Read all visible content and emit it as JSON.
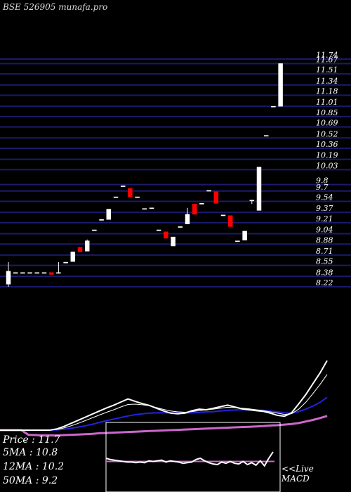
{
  "watermark": "BSE 526905 munafa.pro",
  "chart_data": {
    "type": "candlestick",
    "y_ticks": [
      "11.74",
      "11.67",
      "11.51",
      "11.34",
      "11.18",
      "11.01",
      "10.85",
      "10.69",
      "10.52",
      "10.36",
      "10.19",
      "10.03",
      "9.8",
      "9.7",
      "9.54",
      "9.37",
      "9.21",
      "9.04",
      "8.88",
      "8.71",
      "8.55",
      "8.38",
      "8.22"
    ],
    "candles": [
      {
        "o": 8.26,
        "c": 8.46,
        "h": 8.6,
        "l": 8.22,
        "color": "white"
      },
      {
        "o": 8.44,
        "c": 8.44,
        "h": 8.44,
        "l": 8.44,
        "color": "white"
      },
      {
        "o": 8.44,
        "c": 8.44,
        "h": 8.44,
        "l": 8.44,
        "color": "white"
      },
      {
        "o": 8.44,
        "c": 8.44,
        "h": 8.44,
        "l": 8.44,
        "color": "white"
      },
      {
        "o": 8.44,
        "c": 8.44,
        "h": 8.44,
        "l": 8.44,
        "color": "white"
      },
      {
        "o": 8.44,
        "c": 8.44,
        "h": 8.44,
        "l": 8.44,
        "color": "white"
      },
      {
        "o": 8.44,
        "c": 8.41,
        "h": 8.44,
        "l": 8.41,
        "color": "red"
      },
      {
        "o": 8.44,
        "c": 8.44,
        "h": 8.6,
        "l": 8.44,
        "color": "white"
      },
      {
        "o": 8.6,
        "c": 8.6,
        "h": 8.6,
        "l": 8.6,
        "color": "white"
      },
      {
        "o": 8.61,
        "c": 8.76,
        "h": 8.76,
        "l": 8.61,
        "color": "white"
      },
      {
        "o": 8.76,
        "c": 8.83,
        "h": 8.83,
        "l": 8.76,
        "color": "red"
      },
      {
        "o": 8.77,
        "c": 8.93,
        "h": 8.95,
        "l": 8.77,
        "color": "white"
      },
      {
        "o": 9.1,
        "c": 9.1,
        "h": 9.1,
        "l": 9.1,
        "color": "white"
      },
      {
        "o": 9.26,
        "c": 9.26,
        "h": 9.26,
        "l": 9.26,
        "color": "white"
      },
      {
        "o": 9.26,
        "c": 9.42,
        "h": 9.42,
        "l": 9.26,
        "color": "white"
      },
      {
        "o": 9.61,
        "c": 9.61,
        "h": 9.61,
        "l": 9.61,
        "color": "white"
      },
      {
        "o": 9.78,
        "c": 9.78,
        "h": 9.78,
        "l": 9.78,
        "color": "white"
      },
      {
        "o": 9.74,
        "c": 9.61,
        "h": 9.74,
        "l": 9.61,
        "color": "red"
      },
      {
        "o": 9.61,
        "c": 9.61,
        "h": 9.61,
        "l": 9.61,
        "color": "white"
      },
      {
        "o": 9.43,
        "c": 9.43,
        "h": 9.43,
        "l": 9.43,
        "color": "white"
      },
      {
        "o": 9.44,
        "c": 9.44,
        "h": 9.44,
        "l": 9.44,
        "color": "white"
      },
      {
        "o": 9.1,
        "c": 9.1,
        "h": 9.1,
        "l": 9.1,
        "color": "white"
      },
      {
        "o": 9.07,
        "c": 8.97,
        "h": 9.07,
        "l": 8.97,
        "color": "red"
      },
      {
        "o": 8.85,
        "c": 8.99,
        "h": 8.99,
        "l": 8.85,
        "color": "white"
      },
      {
        "o": 9.15,
        "c": 9.15,
        "h": 9.15,
        "l": 9.15,
        "color": "white"
      },
      {
        "o": 9.19,
        "c": 9.34,
        "h": 9.44,
        "l": 9.19,
        "color": "white"
      },
      {
        "o": 9.5,
        "c": 9.34,
        "h": 9.5,
        "l": 9.34,
        "color": "red"
      },
      {
        "o": 9.51,
        "c": 9.51,
        "h": 9.51,
        "l": 9.51,
        "color": "white"
      },
      {
        "o": 9.71,
        "c": 9.71,
        "h": 9.71,
        "l": 9.71,
        "color": "white"
      },
      {
        "o": 9.69,
        "c": 9.51,
        "h": 9.69,
        "l": 9.51,
        "color": "red"
      },
      {
        "o": 9.33,
        "c": 9.33,
        "h": 9.33,
        "l": 9.33,
        "color": "white"
      },
      {
        "o": 9.32,
        "c": 9.15,
        "h": 9.32,
        "l": 9.15,
        "color": "red"
      },
      {
        "o": 8.93,
        "c": 8.93,
        "h": 8.93,
        "l": 8.93,
        "color": "white"
      },
      {
        "o": 8.94,
        "c": 9.08,
        "h": 9.08,
        "l": 8.94,
        "color": "white"
      },
      {
        "o": 9.56,
        "c": 9.56,
        "h": 9.56,
        "l": 9.5,
        "color": "white"
      },
      {
        "o": 9.4,
        "c": 10.07,
        "h": 10.07,
        "l": 9.4,
        "color": "white"
      },
      {
        "o": 10.56,
        "c": 10.56,
        "h": 10.56,
        "l": 10.56,
        "color": "white"
      },
      {
        "o": 11.01,
        "c": 11.01,
        "h": 11.01,
        "l": 11.01,
        "color": "white"
      },
      {
        "o": 11.01,
        "c": 11.67,
        "h": 11.67,
        "l": 11.01,
        "color": "white"
      }
    ],
    "lower_panel": {
      "price_line": [
        0,
        0,
        0,
        0,
        0,
        0,
        0,
        0,
        0.4,
        1.2,
        2.2,
        3.2,
        4.2,
        5.2,
        6.2,
        7.2,
        8.1,
        9.1,
        10.1,
        9.3,
        8.6,
        8.0,
        7.1,
        6.2,
        5.5,
        5.3,
        5.5,
        6.3,
        6.8,
        6.6,
        7.1,
        7.6,
        8.1,
        7.5,
        6.9,
        6.6,
        6.3,
        6.1,
        5.5,
        4.8,
        4.5,
        5.6,
        8.5,
        11.5,
        15.0,
        18.5,
        22.5
      ],
      "ma5": [
        0,
        0,
        0,
        0,
        0,
        0,
        0,
        0,
        0.2,
        0.7,
        1.4,
        2.2,
        3.1,
        4.0,
        4.9,
        5.8,
        6.6,
        7.5,
        8.3,
        8.4,
        8.2,
        7.9,
        7.3,
        6.7,
        6.2,
        5.9,
        5.8,
        6.0,
        6.3,
        6.6,
        6.8,
        7.1,
        7.4,
        7.3,
        7.1,
        6.9,
        6.6,
        6.3,
        5.9,
        5.5,
        5.1,
        5.3,
        6.8,
        9.0,
        11.8,
        14.8,
        18.0
      ],
      "ma12": [
        0,
        0,
        0,
        0,
        0,
        0,
        0,
        0,
        0.1,
        0.3,
        0.6,
        1.0,
        1.4,
        1.9,
        2.5,
        3.1,
        3.6,
        4.1,
        4.6,
        5.0,
        5.3,
        5.5,
        5.6,
        5.6,
        5.6,
        5.5,
        5.5,
        5.6,
        5.7,
        5.9,
        6.0,
        6.2,
        6.4,
        6.5,
        6.6,
        6.6,
        6.5,
        6.4,
        6.2,
        5.9,
        5.6,
        5.5,
        6.0,
        6.8,
        7.8,
        9.0,
        10.6
      ],
      "ma50": [
        0,
        0,
        0,
        0,
        -1.5,
        -1.6,
        -1.7,
        -1.7,
        -1.7,
        -1.6,
        -1.5,
        -1.4,
        -1.3,
        -1.2,
        -1.0,
        -0.9,
        -0.8,
        -0.7,
        -0.6,
        -0.5,
        -0.4,
        -0.3,
        -0.2,
        -0.1,
        0,
        0.1,
        0.2,
        0.3,
        0.4,
        0.5,
        0.6,
        0.7,
        0.8,
        0.9,
        1.0,
        1.1,
        1.2,
        1.3,
        1.5,
        1.6,
        1.8,
        2.0,
        2.3,
        2.8,
        3.3,
        3.9,
        4.6
      ]
    },
    "macd_panel": {
      "line": [
        0.0,
        -0.02,
        -0.03,
        -0.04,
        -0.05,
        -0.06,
        -0.06,
        -0.07,
        -0.06,
        -0.07,
        -0.04,
        -0.05,
        -0.04,
        -0.03,
        -0.06,
        -0.04,
        -0.05,
        -0.06,
        -0.08,
        -0.07,
        -0.06,
        -0.02,
        0.0,
        -0.04,
        -0.07,
        -0.09,
        -0.1,
        -0.06,
        -0.08,
        -0.05,
        -0.08,
        -0.09,
        -0.05,
        -0.1,
        -0.07,
        -0.11,
        -0.04,
        -0.12,
        0.0,
        0.1
      ],
      "signal": -0.05
    }
  },
  "legend": {
    "price": "Price   : 11.7",
    "ma5": "5MA : 10.8",
    "ma12": "12MA : 10.2",
    "ma50": "50MA : 9.2"
  },
  "macd_label_live": "<<Live",
  "macd_label_name": "MACD",
  "colors": {
    "grid": "#1a1a6e",
    "up": "#ffffff",
    "down": "#ff0000",
    "price_line": "#ffffff",
    "ma5": "#ffffff",
    "ma12": "#2222dd",
    "ma50": "#cc66cc",
    "macd": "#ffffff",
    "signal": "#cc66cc"
  }
}
